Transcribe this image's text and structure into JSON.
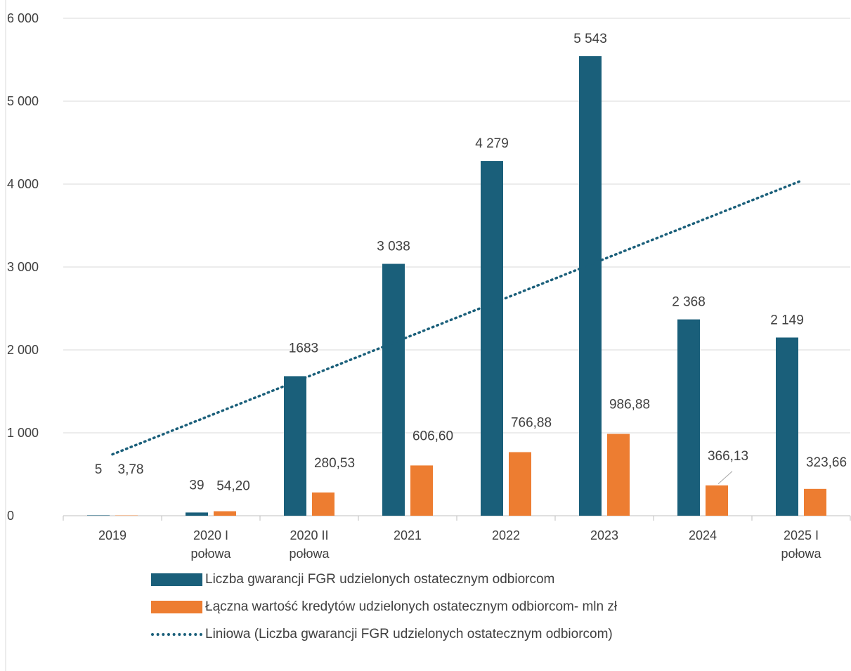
{
  "chart_data": {
    "type": "bar",
    "title": "",
    "xlabel": "",
    "ylabel": "",
    "ylim": [
      0,
      6000
    ],
    "yticks": [
      0,
      1000,
      2000,
      3000,
      4000,
      5000,
      6000
    ],
    "ytick_labels": [
      "0",
      "1 000",
      "2 000",
      "3 000",
      "4 000",
      "5 000",
      "6 000"
    ],
    "grid": "horizontal",
    "legend_position": "bottom",
    "categories": [
      [
        "2019"
      ],
      [
        "2020 I",
        "połowa"
      ],
      [
        "2020 II",
        "połowa"
      ],
      [
        "2021"
      ],
      [
        "2022"
      ],
      [
        "2023"
      ],
      [
        "2024"
      ],
      [
        "2025 I",
        "połowa"
      ]
    ],
    "series": [
      {
        "name": "Liczba  gwarancji FGR udzielonych ostatecznym odbiorcom",
        "type": "bar",
        "color": "#1a5f7a",
        "values": [
          5,
          39,
          1683,
          3038,
          4279,
          5543,
          2368,
          2149
        ],
        "labels": [
          "5",
          "39",
          "1683",
          "3 038",
          "4 279",
          "5 543",
          "2 368",
          "2 149"
        ]
      },
      {
        "name": "Łączna wartość kredytów udzielonych ostatecznym odbiorcom- mln zł",
        "type": "bar",
        "color": "#ed7d31",
        "values": [
          3.78,
          54.2,
          280.53,
          606.6,
          766.88,
          986.88,
          366.13,
          323.66
        ],
        "labels": [
          "3,78",
          "54,20",
          "280,53",
          "606,60",
          "766,88",
          "986,88",
          "366,13",
          "323,66"
        ]
      },
      {
        "name": "Liniowa (Liczba  gwarancji FGR udzielonych ostatecznym odbiorcom)",
        "type": "trendline",
        "style": "dotted",
        "color": "#1a5f7a",
        "start_value": 740,
        "end_value": 4040
      }
    ]
  }
}
